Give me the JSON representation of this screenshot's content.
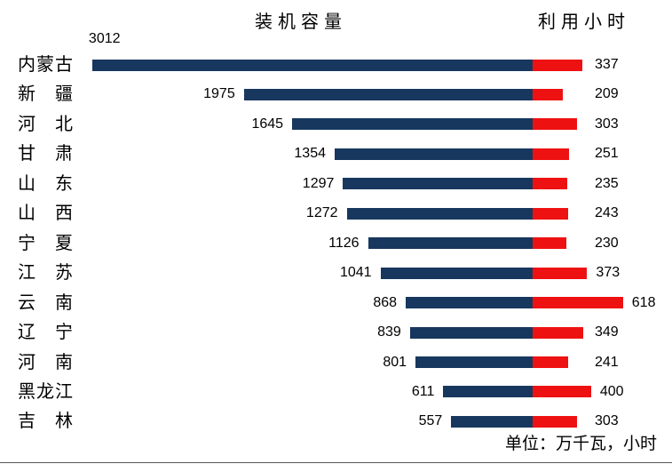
{
  "headers": {
    "capacity": "装机容量",
    "hours": "利用小时"
  },
  "footer": {
    "unit_label": "单位：万千瓦，小时"
  },
  "colors": {
    "capacity_bar": "#17375E",
    "hours_bar": "#EE1111",
    "text": "#000000",
    "background": "#FFFFFF"
  },
  "rows": [
    {
      "province": "内蒙古",
      "province_display": "内蒙古",
      "capacity": 3012,
      "hours": 337
    },
    {
      "province": "新疆",
      "province_display": "新　疆",
      "capacity": 1975,
      "hours": 209
    },
    {
      "province": "河北",
      "province_display": "河　北",
      "capacity": 1645,
      "hours": 303
    },
    {
      "province": "甘肃",
      "province_display": "甘　肃",
      "capacity": 1354,
      "hours": 251
    },
    {
      "province": "山东",
      "province_display": "山　东",
      "capacity": 1297,
      "hours": 235
    },
    {
      "province": "山西",
      "province_display": "山　西",
      "capacity": 1272,
      "hours": 243
    },
    {
      "province": "宁夏",
      "province_display": "宁　夏",
      "capacity": 1126,
      "hours": 230
    },
    {
      "province": "江苏",
      "province_display": "江　苏",
      "capacity": 1041,
      "hours": 373
    },
    {
      "province": "云南",
      "province_display": "云　南",
      "capacity": 868,
      "hours": 618
    },
    {
      "province": "辽宁",
      "province_display": "辽　宁",
      "capacity": 839,
      "hours": 349
    },
    {
      "province": "河南",
      "province_display": "河　南",
      "capacity": 801,
      "hours": 241
    },
    {
      "province": "黑龙江",
      "province_display": "黑龙江",
      "capacity": 611,
      "hours": 400
    },
    {
      "province": "吉林",
      "province_display": "吉　林",
      "capacity": 557,
      "hours": 303
    }
  ],
  "chart_data": {
    "type": "bar",
    "orientation": "horizontal-diverging",
    "title": "",
    "categories": [
      "内蒙古",
      "新疆",
      "河北",
      "甘肃",
      "山东",
      "山西",
      "宁夏",
      "江苏",
      "云南",
      "辽宁",
      "河南",
      "黑龙江",
      "吉林"
    ],
    "series": [
      {
        "name": "装机容量",
        "direction": "left",
        "color": "#17375E",
        "values": [
          3012,
          1975,
          1645,
          1354,
          1297,
          1272,
          1126,
          1041,
          868,
          839,
          801,
          611,
          557
        ]
      },
      {
        "name": "利用小时",
        "direction": "right",
        "color": "#EE1111",
        "values": [
          337,
          209,
          303,
          251,
          235,
          243,
          230,
          373,
          618,
          349,
          241,
          400,
          303
        ]
      }
    ],
    "unit_note": "单位：万千瓦，小时",
    "legend_position": "top",
    "grid": false,
    "data_labels": true
  }
}
